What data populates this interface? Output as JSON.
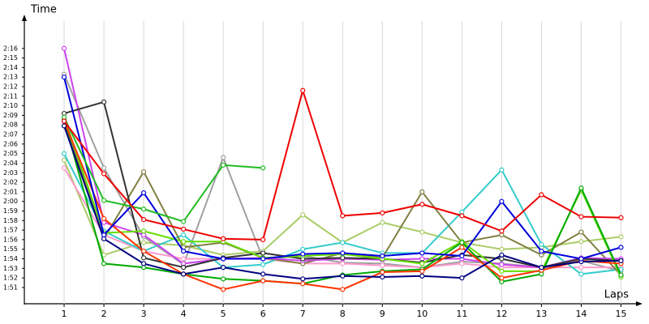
{
  "chart_data": {
    "type": "line",
    "y_label": "Time",
    "x_label": "Laps",
    "xlim": [
      0,
      15.5
    ],
    "ylim": [
      109.3,
      139.2
    ],
    "grid": "x",
    "markers": true,
    "xticks": [
      1,
      2,
      3,
      4,
      5,
      6,
      7,
      8,
      9,
      10,
      11,
      12,
      13,
      14,
      15
    ],
    "x": [
      1,
      2,
      3,
      4,
      5,
      6,
      7,
      8,
      9,
      10,
      11,
      12,
      13,
      14,
      15
    ],
    "yticks": [
      {
        "value": 111,
        "label": "1:51"
      },
      {
        "value": 112,
        "label": "1:52"
      },
      {
        "value": 113,
        "label": "1:53"
      },
      {
        "value": 114,
        "label": "1:54"
      },
      {
        "value": 115,
        "label": "1:55"
      },
      {
        "value": 116,
        "label": "1:56"
      },
      {
        "value": 117,
        "label": "1:57"
      },
      {
        "value": 118,
        "label": "1:58"
      },
      {
        "value": 119,
        "label": "1:59"
      },
      {
        "value": 120,
        "label": "2:00"
      },
      {
        "value": 121,
        "label": "2:01"
      },
      {
        "value": 122,
        "label": "2:02"
      },
      {
        "value": 123,
        "label": "2:03"
      },
      {
        "value": 124,
        "label": "2:04"
      },
      {
        "value": 125,
        "label": "2:05"
      },
      {
        "value": 126,
        "label": "2:06"
      },
      {
        "value": 127,
        "label": "2:07"
      },
      {
        "value": 128,
        "label": "2:08"
      },
      {
        "value": 129,
        "label": "2:09"
      },
      {
        "value": 130,
        "label": "2:10"
      },
      {
        "value": 131,
        "label": "2:11"
      },
      {
        "value": 132,
        "label": "2:12"
      },
      {
        "value": 133,
        "label": "2:13"
      },
      {
        "value": 134,
        "label": "2:14"
      },
      {
        "value": 135,
        "label": "2:15"
      },
      {
        "value": 136,
        "label": "2:16"
      }
    ],
    "series": [
      {
        "color": "#aacc66",
        "values": [
          124.3,
          114.4,
          115.7,
          115.4,
          114.4,
          114.8,
          118.6,
          115.7,
          117.8,
          116.8,
          115.7,
          115.0,
          115.2,
          115.8,
          116.3
        ]
      },
      {
        "color": "#a0a0a0",
        "values": [
          133.3,
          123.5,
          116.3,
          113.4,
          124.6,
          114.0,
          114.3,
          113.6,
          113.5,
          113.1,
          113.7,
          113.5,
          113.1,
          113.8,
          112.7
        ]
      },
      {
        "color": "#ff99cc",
        "values": [
          123.5,
          116.5,
          114.8,
          114.0,
          114.0,
          114.0,
          113.5,
          113.5,
          113.3,
          113.1,
          113.5,
          113.1,
          113.1,
          113.1,
          113.1
        ]
      },
      {
        "color": "#33cccc",
        "values": [
          125.0,
          116.9,
          114.8,
          116.5,
          113.1,
          113.4,
          115.0,
          115.7,
          114.6,
          114.6,
          118.9,
          123.3,
          115.5,
          112.4,
          112.9
        ]
      },
      {
        "color": "#808040",
        "values": [
          128.5,
          116.1,
          123.1,
          115.2,
          115.7,
          114.1,
          113.5,
          114.6,
          114.1,
          121.0,
          115.7,
          116.5,
          114.4,
          116.8,
          112.3
        ]
      },
      {
        "color": "#cc44ee",
        "values": [
          136.0,
          117.8,
          116.5,
          113.5,
          114.0,
          114.1,
          113.8,
          114.0,
          113.9,
          114.0,
          114.0,
          113.4,
          113.1,
          114.1,
          114.0
        ]
      },
      {
        "color": "#333333",
        "values": [
          129.2,
          130.4,
          114.1,
          113.1,
          114.1,
          114.6,
          114.0,
          114.1,
          114.0,
          113.6,
          114.4,
          114.0,
          113.1,
          114.0,
          113.8
        ]
      },
      {
        "color": "#66dd00",
        "values": [
          128.8,
          116.7,
          116.9,
          115.8,
          115.8,
          114.1,
          114.3,
          114.5,
          114.0,
          113.5,
          115.8,
          112.7,
          112.7,
          121.2,
          112.1
        ]
      },
      {
        "color": "#00aa00",
        "values": [
          128.5,
          113.5,
          113.1,
          112.4,
          111.9,
          111.7,
          111.4,
          112.3,
          112.7,
          112.9,
          115.7,
          111.6,
          112.4,
          121.4,
          112.3
        ]
      },
      {
        "color": "#ff3300",
        "values": [
          128.4,
          118.2,
          114.8,
          112.4,
          110.8,
          111.7,
          111.4,
          110.8,
          112.6,
          112.7,
          115.2,
          112.0,
          112.8,
          113.8,
          113.5
        ]
      },
      {
        "color": "#000080",
        "values": [
          127.9,
          116.1,
          113.5,
          112.4,
          113.1,
          112.4,
          111.9,
          112.2,
          112.1,
          112.2,
          112.0,
          114.4,
          113.1,
          113.7,
          113.8
        ]
      },
      {
        "color": "#0000dd",
        "values": [
          133.0,
          116.5,
          120.9,
          114.8,
          114.0,
          114.0,
          114.5,
          114.6,
          114.3,
          114.6,
          114.3,
          120.0,
          114.8,
          114.0,
          115.2
        ]
      },
      {
        "color": "#22bb22",
        "values": [
          128.8,
          120.1,
          119.2,
          117.9,
          123.8,
          123.5,
          null,
          null,
          null,
          null,
          null,
          null,
          null,
          null,
          null
        ]
      },
      {
        "color": "#ee0000",
        "values": [
          128.4,
          122.9,
          118.1,
          117.1,
          116.1,
          116.0,
          131.6,
          118.5,
          118.8,
          119.7,
          118.5,
          116.9,
          120.7,
          118.4,
          118.3
        ]
      }
    ]
  }
}
